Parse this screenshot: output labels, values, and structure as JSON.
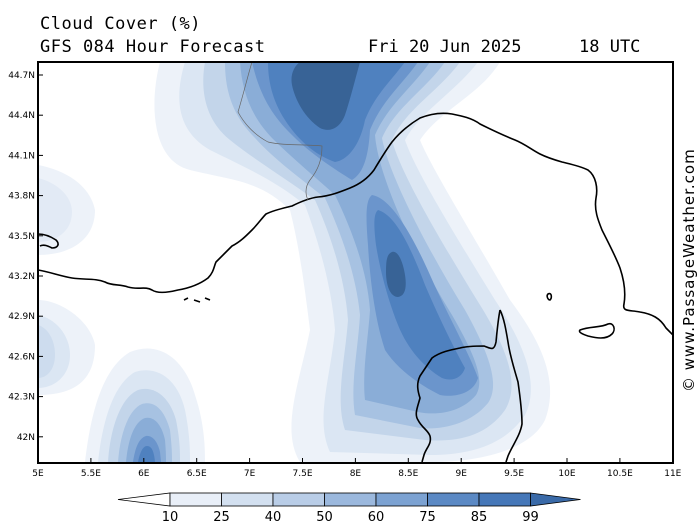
{
  "header": {
    "title": "Cloud Cover (%)",
    "subtitle": "GFS 084 Hour Forecast",
    "date": "Fri 20 Jun 2025",
    "time": "18 UTC"
  },
  "credit": "© www.PassageWeather.com",
  "axes": {
    "lat_labels": [
      "44.7N",
      "44.4N",
      "44.1N",
      "43.8N",
      "43.5N",
      "43.2N",
      "42.9N",
      "42.6N",
      "42.3N",
      "42N"
    ],
    "lon_labels": [
      "5E",
      "5.5E",
      "6E",
      "6.5E",
      "7E",
      "7.5E",
      "8E",
      "8.5E",
      "9E",
      "9.5E",
      "10E",
      "10.5E",
      "11E"
    ]
  },
  "colorbar": {
    "labels": [
      "10",
      "25",
      "40",
      "50",
      "60",
      "75",
      "85",
      "99"
    ],
    "colors": [
      "#ffffff",
      "#e9eff8",
      "#d3e0f0",
      "#b9cde7",
      "#9bb8dd",
      "#7ca2d2",
      "#5b89c4",
      "#4577b8",
      "#3a6aa8"
    ]
  },
  "colors": {
    "land_border": "#000000",
    "frame": "#000000"
  }
}
